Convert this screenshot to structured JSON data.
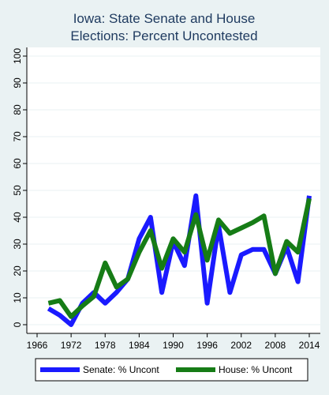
{
  "chart_data": {
    "type": "line",
    "title_lines": [
      "Iowa: State Senate and House",
      "Elections: Percent Uncontested"
    ],
    "xlabel": "",
    "ylabel": "",
    "xlim": [
      1966,
      2014
    ],
    "ylim": [
      0,
      100
    ],
    "x_ticks": [
      "1966",
      "1972",
      "1978",
      "1984",
      "1990",
      "1996",
      "2002",
      "2008",
      "2014"
    ],
    "y_ticks": [
      "0",
      "10",
      "20",
      "30",
      "40",
      "50",
      "60",
      "70",
      "80",
      "90",
      "100"
    ],
    "grid": true,
    "legend_position": "bottom",
    "series": [
      {
        "name": "Senate: % Uncont",
        "color": "#1a1aff",
        "points": [
          [
            1968,
            6
          ],
          [
            1970,
            3.5
          ],
          [
            1972,
            0
          ],
          [
            1974,
            8
          ],
          [
            1976,
            12
          ],
          [
            1978,
            8
          ],
          [
            1980,
            12
          ],
          [
            1982,
            17
          ],
          [
            1984,
            32
          ],
          [
            1986,
            40
          ],
          [
            1988,
            12
          ],
          [
            1990,
            31
          ],
          [
            1992,
            22
          ],
          [
            1994,
            48
          ],
          [
            1996,
            8
          ],
          [
            1998,
            37
          ],
          [
            2000,
            12
          ],
          [
            2002,
            26
          ],
          [
            2004,
            28
          ],
          [
            2006,
            28
          ],
          [
            2008,
            19
          ],
          [
            2010,
            29
          ],
          [
            2012,
            16
          ],
          [
            2014,
            48
          ]
        ]
      },
      {
        "name": "House: % Uncont",
        "color": "#167c16",
        "points": [
          [
            1968,
            8
          ],
          [
            1970,
            9
          ],
          [
            1972,
            3
          ],
          [
            1974,
            7
          ],
          [
            1976,
            10.5
          ],
          [
            1978,
            23
          ],
          [
            1980,
            14
          ],
          [
            1982,
            17
          ],
          [
            1984,
            27
          ],
          [
            1986,
            35
          ],
          [
            1988,
            21
          ],
          [
            1990,
            32
          ],
          [
            1992,
            27
          ],
          [
            1994,
            41
          ],
          [
            1996,
            24
          ],
          [
            1998,
            39
          ],
          [
            2000,
            34
          ],
          [
            2002,
            36
          ],
          [
            2004,
            38
          ],
          [
            2006,
            40.5
          ],
          [
            2008,
            19
          ],
          [
            2010,
            31
          ],
          [
            2012,
            27
          ],
          [
            2014,
            47
          ]
        ]
      }
    ]
  }
}
